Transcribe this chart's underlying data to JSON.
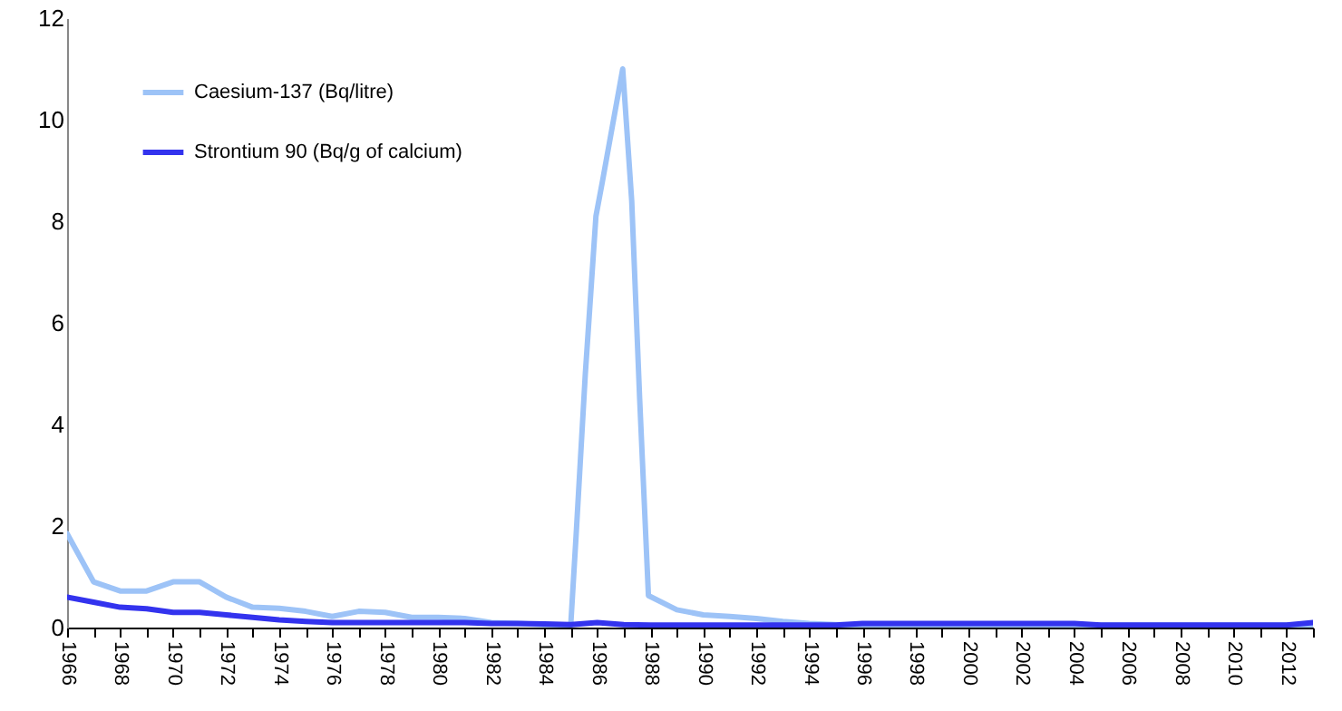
{
  "chart_data": {
    "type": "line",
    "xlim": [
      1966,
      2013
    ],
    "ylim": [
      0,
      12
    ],
    "yticks": [
      0,
      2,
      4,
      6,
      8,
      10,
      12
    ],
    "xticks": [
      1966,
      {
        "value": 1967,
        "label": null
      },
      1968,
      {
        "value": 1969,
        "label": null
      },
      1970,
      {
        "value": 1971,
        "label": null
      },
      1972,
      {
        "value": 1973,
        "label": null
      },
      1974,
      {
        "value": 1975,
        "label": null
      },
      1976,
      {
        "value": 1977,
        "label": null
      },
      1978,
      {
        "value": 1979,
        "label": null
      },
      1980,
      {
        "value": 1981,
        "label": null
      },
      1982,
      {
        "value": 1983,
        "label": null
      },
      1984,
      {
        "value": 1985,
        "label": null
      },
      1986,
      {
        "value": 1987,
        "label": null
      },
      1988,
      {
        "value": 1989,
        "label": null
      },
      1990,
      {
        "value": 1991,
        "label": null
      },
      1992,
      {
        "value": 1993,
        "label": null
      },
      1994,
      {
        "value": 1995,
        "label": null
      },
      1996,
      {
        "value": 1997,
        "label": null
      },
      1998,
      {
        "value": 1999,
        "label": null
      },
      2000,
      {
        "value": 2001,
        "label": null
      },
      2002,
      {
        "value": 2003,
        "label": null
      },
      2004,
      {
        "value": 2005,
        "label": null
      },
      2006,
      {
        "value": 2007,
        "label": null
      },
      2008,
      {
        "value": 2009,
        "label": null
      },
      2010,
      {
        "value": 2011,
        "label": null
      },
      2012,
      {
        "value": 2013,
        "label": null
      }
    ],
    "legend": "top left",
    "grid": false,
    "line_style": "solid",
    "marker": "none",
    "series": [
      {
        "name": "Caesium-137 (Bq/litre)",
        "color": "#9dc3f7",
        "x": [
          1966,
          1967,
          1968,
          1969,
          1970,
          1971,
          1972,
          1973,
          1974,
          1975,
          1976,
          1977,
          1978,
          1979,
          1980,
          1981,
          1982,
          1983,
          1984,
          1985,
          1985.2,
          1985.55,
          1985.95,
          1986.2,
          1986.96,
          1987.3,
          1987.6,
          1987.93,
          1989,
          1990,
          1991,
          1992,
          1993,
          1994,
          1995,
          1996,
          2000,
          2013
        ],
        "values": [
          1.85,
          0.9,
          0.72,
          0.72,
          0.9,
          0.9,
          0.6,
          0.4,
          0.38,
          0.32,
          0.22,
          0.32,
          0.3,
          0.2,
          0.2,
          0.18,
          0.1,
          0.08,
          0.06,
          0.05,
          1.8,
          5.0,
          8.1,
          8.8,
          11.0,
          8.4,
          4.5,
          0.63,
          0.35,
          0.25,
          0.22,
          0.18,
          0.12,
          0.08,
          0.06,
          0.05,
          0.05,
          0.05
        ]
      },
      {
        "name": "Strontium 90 (Bq/g of calcium)",
        "color": "#3333ee",
        "x": [
          1966,
          1967,
          1968,
          1969,
          1970,
          1971,
          1972,
          1973,
          1974,
          1975,
          1976,
          1977,
          1978,
          1979,
          1980,
          1981,
          1982,
          1983,
          1984,
          1985,
          1986,
          1987,
          1988,
          1990,
          1995,
          1996,
          2004,
          2005,
          2012,
          2013
        ],
        "values": [
          0.6,
          0.5,
          0.4,
          0.37,
          0.3,
          0.3,
          0.25,
          0.2,
          0.15,
          0.12,
          0.1,
          0.1,
          0.1,
          0.1,
          0.1,
          0.1,
          0.08,
          0.08,
          0.07,
          0.06,
          0.1,
          0.06,
          0.05,
          0.05,
          0.05,
          0.08,
          0.08,
          0.05,
          0.05,
          0.1
        ]
      }
    ]
  }
}
